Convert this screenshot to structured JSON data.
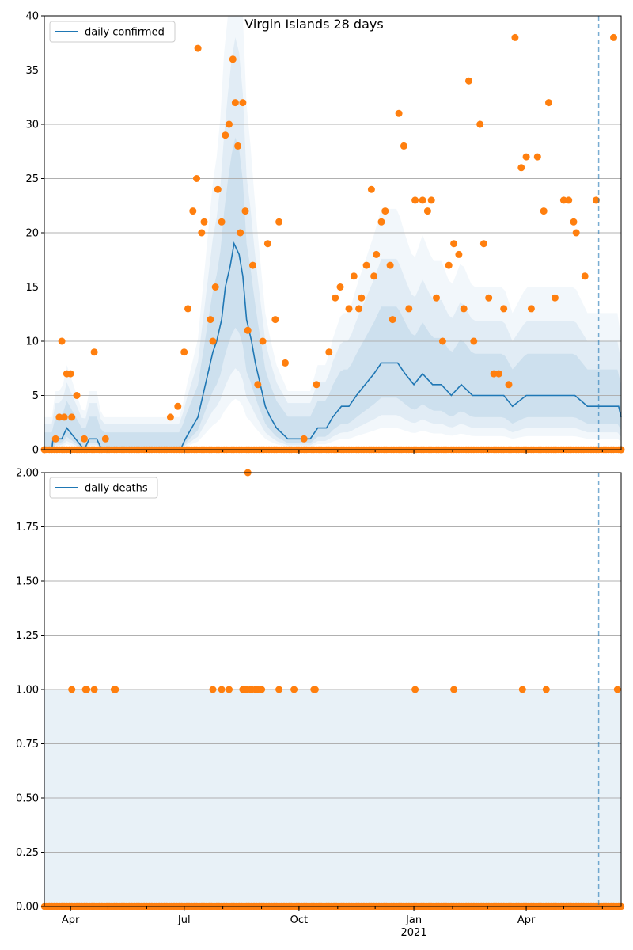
{
  "chart_data": [
    {
      "type": "line",
      "title": "Virgin Islands 28 days",
      "xlabel": "",
      "ylabel": "",
      "ylim": [
        0,
        40
      ],
      "yticks": [
        0,
        5,
        10,
        15,
        20,
        25,
        30,
        35,
        40
      ],
      "grid": "horizontal",
      "legend": {
        "placement": "upper-left",
        "entries": [
          "daily confirmed"
        ]
      },
      "xlim": [
        "2020-03-11",
        "2021-06-16"
      ],
      "xtick_labels": [
        {
          "date": "2020-04-01",
          "label": "Apr"
        },
        {
          "date": "2020-07-01",
          "label": "Jul"
        },
        {
          "date": "2020-10-01",
          "label": "Oct"
        },
        {
          "date": "2021-01-01",
          "label": "Jan"
        },
        {
          "date": "2021-04-01",
          "label": "Apr"
        }
      ],
      "year_label": {
        "date": "2021-01-01",
        "label": "2021"
      },
      "forecast_start": "2021-05-29",
      "series": [
        {
          "name": "daily confirmed",
          "style": "line",
          "color": "#1f77b4",
          "points": [
            [
              "2020-03-11",
              0
            ],
            [
              "2020-03-17",
              0
            ],
            [
              "2020-03-18",
              1
            ],
            [
              "2020-03-25",
              1
            ],
            [
              "2020-03-29",
              2
            ],
            [
              "2020-04-05",
              1
            ],
            [
              "2020-04-12",
              0
            ],
            [
              "2020-04-16",
              1
            ],
            [
              "2020-04-22",
              1
            ],
            [
              "2020-04-26",
              0
            ],
            [
              "2020-06-28",
              0
            ],
            [
              "2020-07-02",
              1
            ],
            [
              "2020-07-07",
              2
            ],
            [
              "2020-07-12",
              3
            ],
            [
              "2020-07-16",
              5
            ],
            [
              "2020-07-20",
              7
            ],
            [
              "2020-07-24",
              9
            ],
            [
              "2020-07-27",
              10
            ],
            [
              "2020-07-31",
              12
            ],
            [
              "2020-08-03",
              15
            ],
            [
              "2020-08-07",
              17
            ],
            [
              "2020-08-10",
              19
            ],
            [
              "2020-08-14",
              18
            ],
            [
              "2020-08-17",
              16
            ],
            [
              "2020-08-20",
              12
            ],
            [
              "2020-08-24",
              10
            ],
            [
              "2020-08-27",
              8
            ],
            [
              "2020-08-31",
              6
            ],
            [
              "2020-09-04",
              4
            ],
            [
              "2020-09-08",
              3
            ],
            [
              "2020-09-13",
              2
            ],
            [
              "2020-09-22",
              1
            ],
            [
              "2020-10-01",
              1
            ],
            [
              "2020-10-10",
              1
            ],
            [
              "2020-10-16",
              2
            ],
            [
              "2020-10-23",
              2
            ],
            [
              "2020-10-28",
              3
            ],
            [
              "2020-11-04",
              4
            ],
            [
              "2020-11-10",
              4
            ],
            [
              "2020-11-16",
              5
            ],
            [
              "2020-11-23",
              6
            ],
            [
              "2020-11-30",
              7
            ],
            [
              "2020-12-06",
              8
            ],
            [
              "2020-12-12",
              8
            ],
            [
              "2020-12-19",
              8
            ],
            [
              "2020-12-25",
              7
            ],
            [
              "2021-01-01",
              6
            ],
            [
              "2021-01-08",
              7
            ],
            [
              "2021-01-16",
              6
            ],
            [
              "2021-01-23",
              6
            ],
            [
              "2021-01-31",
              5
            ],
            [
              "2021-02-08",
              6
            ],
            [
              "2021-02-17",
              5
            ],
            [
              "2021-02-25",
              5
            ],
            [
              "2021-03-06",
              5
            ],
            [
              "2021-03-14",
              5
            ],
            [
              "2021-03-21",
              4
            ],
            [
              "2021-04-01",
              5
            ],
            [
              "2021-04-10",
              5
            ],
            [
              "2021-04-20",
              5
            ],
            [
              "2021-04-30",
              5
            ],
            [
              "2021-05-10",
              5
            ],
            [
              "2021-05-20",
              4
            ],
            [
              "2021-05-29",
              4
            ],
            [
              "2021-06-08",
              4
            ],
            [
              "2021-06-14",
              4
            ],
            [
              "2021-06-16",
              3
            ]
          ]
        },
        {
          "name": "",
          "style": "markers",
          "color": "#ff7f0e",
          "points": [
            [
              "2020-03-11",
              0
            ],
            [
              "2020-03-20",
              1
            ],
            [
              "2020-03-23",
              3
            ],
            [
              "2020-03-25",
              10
            ],
            [
              "2020-03-27",
              3
            ],
            [
              "2020-03-29",
              7
            ],
            [
              "2020-04-01",
              7
            ],
            [
              "2020-04-02",
              3
            ],
            [
              "2020-04-06",
              5
            ],
            [
              "2020-04-12",
              1
            ],
            [
              "2020-04-20",
              9
            ],
            [
              "2020-04-29",
              1
            ],
            [
              "2020-06-20",
              3
            ],
            [
              "2020-06-26",
              4
            ],
            [
              "2020-07-01",
              9
            ],
            [
              "2020-07-04",
              13
            ],
            [
              "2020-07-08",
              22
            ],
            [
              "2020-07-11",
              25
            ],
            [
              "2020-07-12",
              37
            ],
            [
              "2020-07-15",
              20
            ],
            [
              "2020-07-17",
              21
            ],
            [
              "2020-07-22",
              12
            ],
            [
              "2020-07-24",
              10
            ],
            [
              "2020-07-26",
              15
            ],
            [
              "2020-07-28",
              24
            ],
            [
              "2020-07-31",
              21
            ],
            [
              "2020-08-03",
              29
            ],
            [
              "2020-08-06",
              30
            ],
            [
              "2020-08-09",
              36
            ],
            [
              "2020-08-11",
              32
            ],
            [
              "2020-08-13",
              28
            ],
            [
              "2020-08-15",
              20
            ],
            [
              "2020-08-17",
              32
            ],
            [
              "2020-08-19",
              22
            ],
            [
              "2020-08-21",
              11
            ],
            [
              "2020-08-25",
              17
            ],
            [
              "2020-08-29",
              6
            ],
            [
              "2020-09-02",
              10
            ],
            [
              "2020-09-06",
              19
            ],
            [
              "2020-09-12",
              12
            ],
            [
              "2020-09-15",
              21
            ],
            [
              "2020-09-20",
              8
            ],
            [
              "2020-10-05",
              1
            ],
            [
              "2020-10-15",
              6
            ],
            [
              "2020-10-25",
              9
            ],
            [
              "2020-10-30",
              14
            ],
            [
              "2020-11-03",
              15
            ],
            [
              "2020-11-10",
              13
            ],
            [
              "2020-11-14",
              16
            ],
            [
              "2020-11-18",
              13
            ],
            [
              "2020-11-20",
              14
            ],
            [
              "2020-11-24",
              17
            ],
            [
              "2020-11-28",
              24
            ],
            [
              "2020-11-30",
              16
            ],
            [
              "2020-12-02",
              18
            ],
            [
              "2020-12-06",
              21
            ],
            [
              "2020-12-09",
              22
            ],
            [
              "2020-12-13",
              17
            ],
            [
              "2020-12-15",
              12
            ],
            [
              "2020-12-20",
              31
            ],
            [
              "2020-12-24",
              28
            ],
            [
              "2020-12-28",
              13
            ],
            [
              "2021-01-02",
              23
            ],
            [
              "2021-01-08",
              23
            ],
            [
              "2021-01-12",
              22
            ],
            [
              "2021-01-15",
              23
            ],
            [
              "2021-01-19",
              14
            ],
            [
              "2021-01-24",
              10
            ],
            [
              "2021-01-29",
              17
            ],
            [
              "2021-02-02",
              19
            ],
            [
              "2021-02-06",
              18
            ],
            [
              "2021-02-10",
              13
            ],
            [
              "2021-02-14",
              34
            ],
            [
              "2021-02-18",
              10
            ],
            [
              "2021-02-23",
              30
            ],
            [
              "2021-02-26",
              19
            ],
            [
              "2021-03-02",
              14
            ],
            [
              "2021-03-06",
              7
            ],
            [
              "2021-03-10",
              7
            ],
            [
              "2021-03-14",
              13
            ],
            [
              "2021-03-18",
              6
            ],
            [
              "2021-03-23",
              38
            ],
            [
              "2021-03-28",
              26
            ],
            [
              "2021-04-01",
              27
            ],
            [
              "2021-04-05",
              13
            ],
            [
              "2021-04-10",
              27
            ],
            [
              "2021-04-15",
              22
            ],
            [
              "2021-04-19",
              32
            ],
            [
              "2021-04-24",
              14
            ],
            [
              "2021-05-01",
              23
            ],
            [
              "2021-05-05",
              23
            ],
            [
              "2021-05-09",
              21
            ],
            [
              "2021-05-11",
              20
            ],
            [
              "2021-05-18",
              16
            ],
            [
              "2021-05-27",
              23
            ],
            [
              "2021-06-10",
              38
            ],
            [
              "2021-06-16",
              0
            ]
          ]
        }
      ]
    },
    {
      "type": "line",
      "title": "",
      "xlabel": "",
      "ylabel": "",
      "ylim": [
        0,
        2
      ],
      "yticks": [
        "0.00",
        "0.25",
        "0.50",
        "0.75",
        "1.00",
        "1.25",
        "1.50",
        "1.75",
        "2.00"
      ],
      "grid": "horizontal",
      "legend": {
        "placement": "upper-left",
        "entries": [
          "daily deaths"
        ]
      },
      "xlim": [
        "2020-03-11",
        "2021-06-16"
      ],
      "forecast_start": "2021-05-29",
      "series": [
        {
          "name": "daily deaths",
          "style": "line",
          "color": "#1f77b4",
          "points": [
            [
              "2020-03-11",
              0
            ],
            [
              "2021-06-16",
              0
            ]
          ]
        },
        {
          "name": "",
          "style": "markers",
          "color": "#ff7f0e",
          "points": [
            [
              "2020-04-02",
              1
            ],
            [
              "2020-04-13",
              1
            ],
            [
              "2020-04-14",
              1
            ],
            [
              "2020-04-20",
              1
            ],
            [
              "2020-05-06",
              1
            ],
            [
              "2020-05-07",
              1
            ],
            [
              "2020-07-24",
              1
            ],
            [
              "2020-07-31",
              1
            ],
            [
              "2020-08-06",
              1
            ],
            [
              "2020-08-17",
              1
            ],
            [
              "2020-08-18",
              1
            ],
            [
              "2020-08-19",
              1
            ],
            [
              "2020-08-20",
              1
            ],
            [
              "2020-08-21",
              2
            ],
            [
              "2020-08-23",
              1
            ],
            [
              "2020-08-24",
              1
            ],
            [
              "2020-08-27",
              1
            ],
            [
              "2020-08-29",
              1
            ],
            [
              "2020-09-01",
              1
            ],
            [
              "2020-09-15",
              1
            ],
            [
              "2020-09-27",
              1
            ],
            [
              "2020-10-13",
              1
            ],
            [
              "2020-10-14",
              1
            ],
            [
              "2021-01-02",
              1
            ],
            [
              "2021-02-02",
              1
            ],
            [
              "2021-03-29",
              1
            ],
            [
              "2021-04-17",
              1
            ],
            [
              "2021-06-13",
              1
            ]
          ]
        }
      ]
    }
  ]
}
